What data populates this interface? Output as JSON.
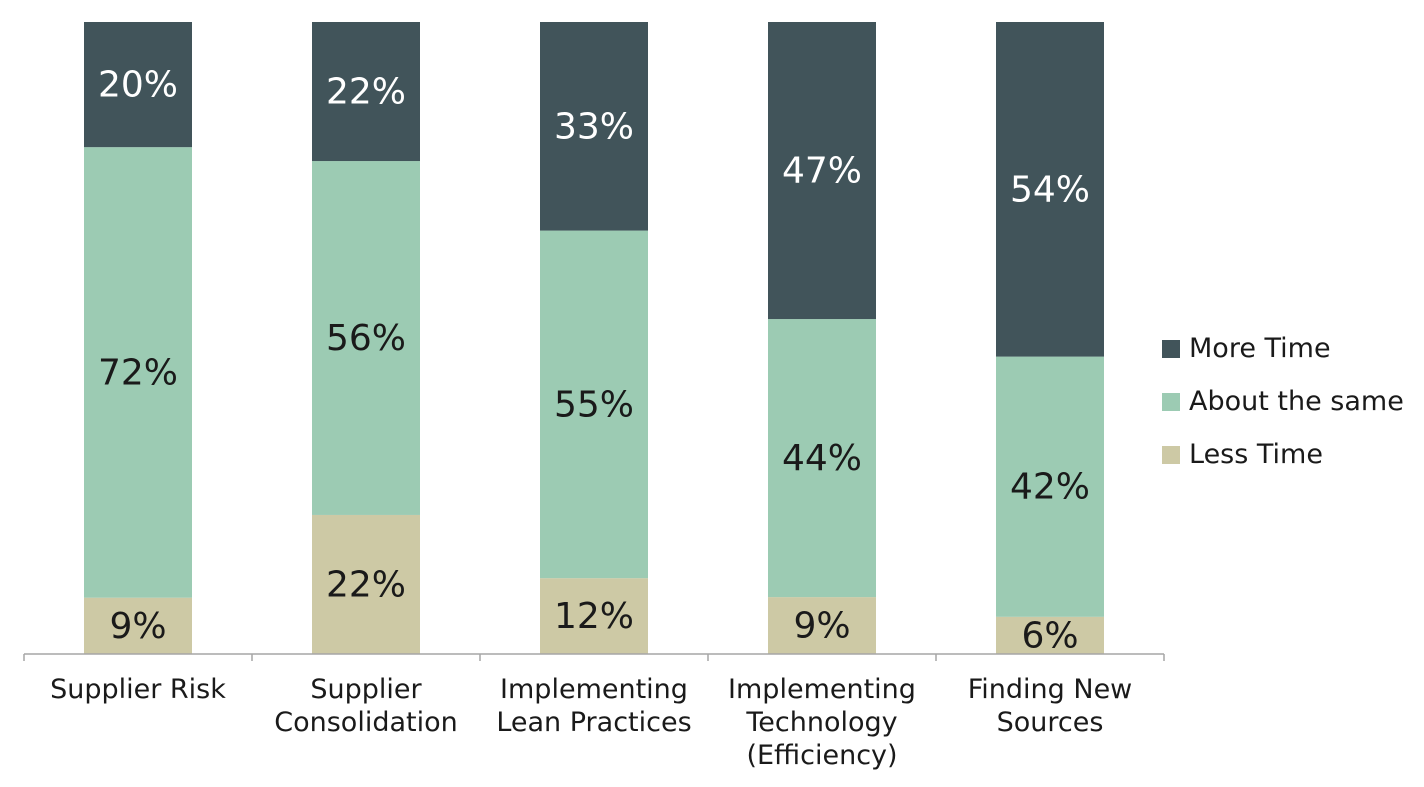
{
  "chart_data": {
    "type": "bar",
    "stacked": true,
    "percent": true,
    "categories": [
      [
        "Supplier Risk"
      ],
      [
        "Supplier",
        "Consolidation"
      ],
      [
        "Implementing",
        "Lean Practices"
      ],
      [
        "Implementing",
        "Technology",
        "(Efficiency)"
      ],
      [
        "Finding New",
        "Sources"
      ]
    ],
    "series": [
      {
        "name": "Less Time",
        "color": "#cdc9a5",
        "label_color": "#1a1a1a",
        "values": [
          9,
          22,
          12,
          9,
          6
        ],
        "labels": [
          "9%",
          "22%",
          "12%",
          "9%",
          "6%"
        ]
      },
      {
        "name": "About the same",
        "color": "#9ccbb3",
        "label_color": "#1a1a1a",
        "values": [
          72,
          56,
          55,
          44,
          42
        ],
        "labels": [
          "72%",
          "56%",
          "55%",
          "44%",
          "42%"
        ]
      },
      {
        "name": "More Time",
        "color": "#41545a",
        "label_color": "#ffffff",
        "values": [
          20,
          22,
          33,
          47,
          54
        ],
        "labels": [
          "20%",
          "22%",
          "33%",
          "47%",
          "54%"
        ]
      }
    ],
    "legend_order": [
      "More Time",
      "About the same",
      "Less Time"
    ],
    "legend_position": "right",
    "ylim": [
      0,
      100
    ],
    "grid": false,
    "axis_color": "#a6a6a6"
  }
}
